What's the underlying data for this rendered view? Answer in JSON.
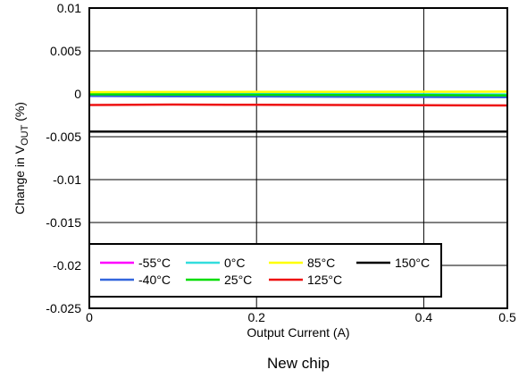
{
  "chart_data": {
    "type": "line",
    "xlabel": "Output Current (A)",
    "ylabel_main": "Change in V",
    "ylabel_sub": "OUT",
    "ylabel_tail": " (%)",
    "xlim": [
      0,
      0.5
    ],
    "ylim": [
      -0.025,
      0.01
    ],
    "x_ticks": [
      0,
      0.2,
      0.4,
      0.5
    ],
    "x_tick_labels": [
      "0",
      "0.2",
      "0.4",
      "0.5"
    ],
    "y_ticks": [
      0.01,
      0.005,
      0,
      -0.005,
      -0.01,
      -0.015,
      -0.02,
      -0.025
    ],
    "y_tick_labels": [
      "0.01",
      "0.005",
      "0",
      "-0.005",
      "-0.01",
      "-0.015",
      "-0.02",
      "-0.025"
    ],
    "grid": true,
    "legend_position": "bottom-left",
    "caption": "New chip",
    "x": [
      0,
      0.1,
      0.2,
      0.3,
      0.4,
      0.5
    ],
    "series": [
      {
        "name": "-55°C",
        "color": "#ff00ff",
        "values": [
          -0.0001,
          -0.00012,
          -0.00015,
          -0.00018,
          -0.0002,
          -0.00022
        ]
      },
      {
        "name": "-40°C",
        "color": "#3366dd",
        "values": [
          -0.00025,
          -0.00028,
          -0.0003,
          -0.00033,
          -0.00036,
          -0.0004
        ]
      },
      {
        "name": "0°C",
        "color": "#33dddd",
        "values": [
          5e-05,
          3e-05,
          0.0,
          -2e-05,
          -4e-05,
          -6e-05
        ]
      },
      {
        "name": "25°C",
        "color": "#00dd00",
        "values": [
          -5e-05,
          -8e-05,
          -0.0001,
          -0.00012,
          -0.00015,
          -0.00018
        ]
      },
      {
        "name": "85°C",
        "color": "#ffff00",
        "values": [
          0.0002,
          0.00022,
          0.00023,
          0.00024,
          0.00025,
          0.00026
        ]
      },
      {
        "name": "125°C",
        "color": "#ee1111",
        "values": [
          -0.0013,
          -0.00125,
          -0.00128,
          -0.0013,
          -0.00133,
          -0.00135
        ]
      },
      {
        "name": "150°C",
        "color": "#000000",
        "values": [
          -0.0044,
          -0.0044,
          -0.0044,
          -0.0044,
          -0.0044,
          -0.0044
        ]
      }
    ],
    "legend_layout": [
      [
        "-55°C",
        "0°C",
        "85°C",
        "150°C"
      ],
      [
        "-40°C",
        "25°C",
        "125°C"
      ]
    ]
  }
}
